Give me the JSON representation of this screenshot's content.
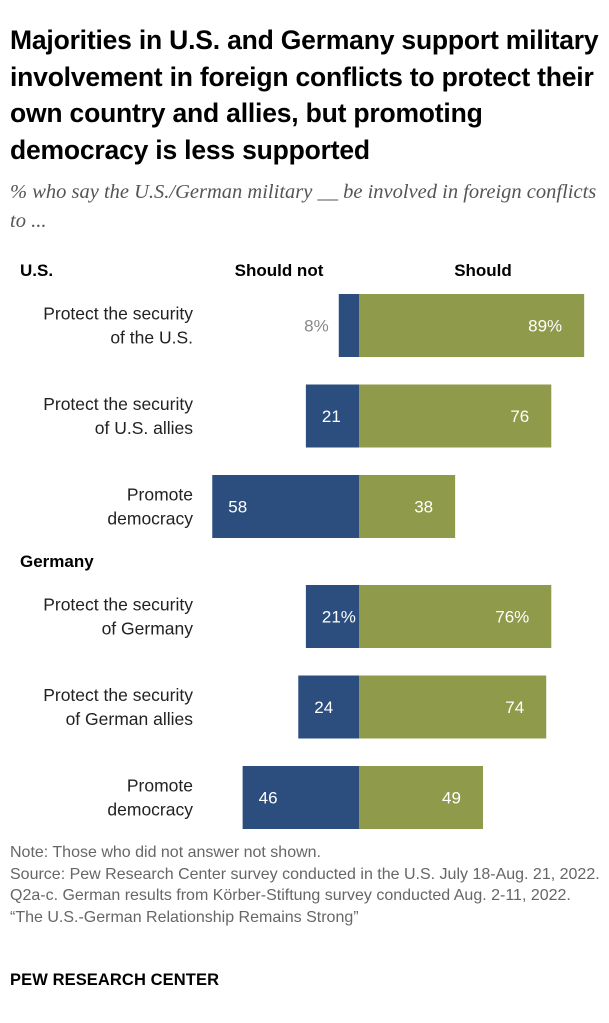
{
  "title": "Majorities in U.S. and Germany support military involvement in foreign conflicts to protect their own country and allies, but promoting democracy is less supported",
  "subtitle": "% who say the U.S./German military __ be involved in foreign conflicts to ...",
  "notes": {
    "note": "Note: Those who did not answer not shown.",
    "source": "Source: Pew Research Center survey conducted in the U.S. July 18-Aug. 21, 2022. Q2a-c. German results from Körber-Stiftung survey conducted Aug. 2-11, 2022.",
    "report": "“The U.S.-German Relationship Remains Strong”"
  },
  "brand": "PEW RESEARCH CENTER",
  "colors": {
    "should_not": "#2b4e7f",
    "should": "#8f9a4b"
  },
  "chart_data": {
    "type": "bar",
    "orientation": "diverging-horizontal",
    "column_labels": {
      "should_not": "Should not",
      "should": "Should"
    },
    "groups": [
      {
        "name": "U.S.",
        "rows": [
          {
            "label_lines": [
              "Protect the security",
              "of the U.S."
            ],
            "should_not": 8,
            "should": 89,
            "should_not_label": "8%",
            "should_label": "89%"
          },
          {
            "label_lines": [
              "Protect the security",
              "of U.S. allies"
            ],
            "should_not": 21,
            "should": 76,
            "should_not_label": "21",
            "should_label": "76"
          },
          {
            "label_lines": [
              "Promote",
              "democracy"
            ],
            "should_not": 58,
            "should": 38,
            "should_not_label": "58",
            "should_label": "38"
          }
        ]
      },
      {
        "name": "Germany",
        "rows": [
          {
            "label_lines": [
              "Protect the security",
              "of Germany"
            ],
            "should_not": 21,
            "should": 76,
            "should_not_label": "21%",
            "should_label": "76%"
          },
          {
            "label_lines": [
              "Protect the security",
              "of German allies"
            ],
            "should_not": 24,
            "should": 74,
            "should_not_label": "24",
            "should_label": "74"
          },
          {
            "label_lines": [
              "Promote",
              "democracy"
            ],
            "should_not": 46,
            "should": 49,
            "should_not_label": "46",
            "should_label": "49"
          }
        ]
      }
    ],
    "unit": "%",
    "xlim": [
      0,
      100
    ]
  }
}
